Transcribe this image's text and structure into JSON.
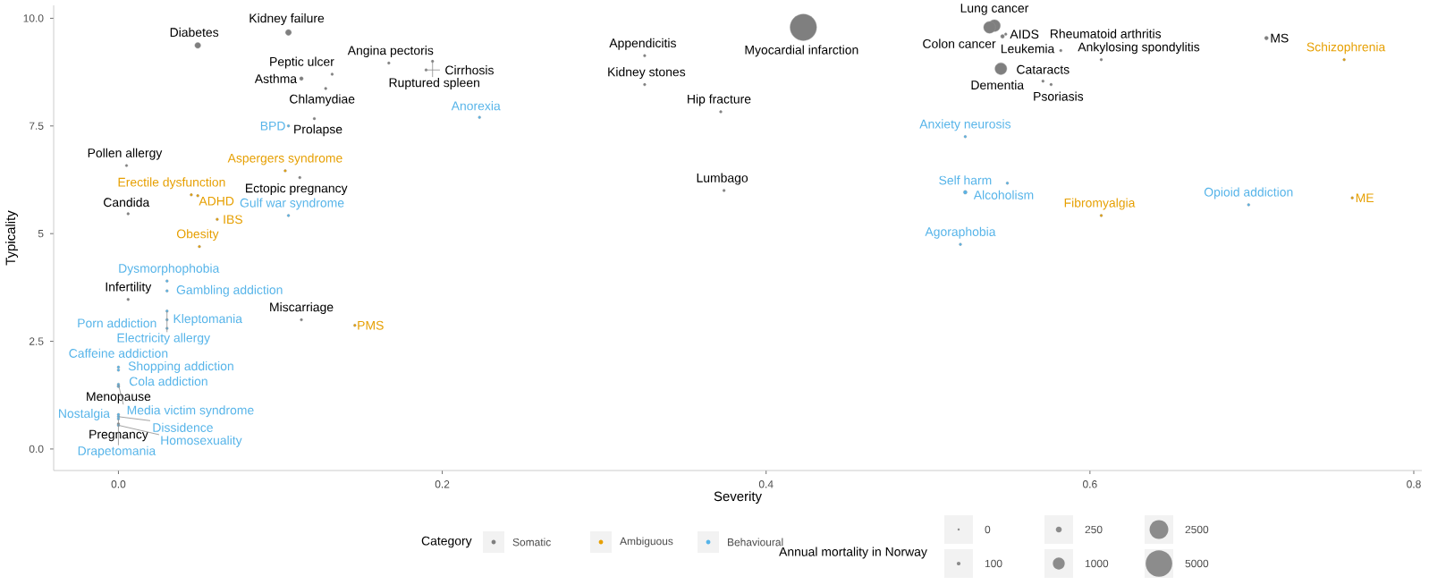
{
  "chart_data": {
    "type": "bubble",
    "xlabel": "Severity",
    "ylabel": "Typicality",
    "legend_title": "Category",
    "legend": "bottom",
    "grid": false,
    "xlim": [
      -0.04,
      0.805
    ],
    "ylim": [
      -0.5,
      10.3
    ],
    "xticks": [
      {
        "value": 0,
        "label": "0.0"
      },
      0.2,
      0.4,
      0.6,
      0.8
    ],
    "yticks": [
      {
        "value": 0,
        "label": "0.0"
      },
      2.5,
      5,
      7.5,
      {
        "value": 10,
        "label": "10.0"
      }
    ],
    "size_legend": [
      0,
      100,
      250,
      1000,
      2500,
      5000
    ],
    "series": [
      {
        "name": "Somatic",
        "color": "#7f7f7f",
        "x": [
          0.105,
          0.049,
          0.113,
          0.167,
          0.194,
          0.19,
          0.128,
          0.132,
          0.121,
          0.005,
          0.112,
          0.006,
          0.006,
          0.113,
          0.0,
          0.0,
          0.423,
          0.325,
          0.325,
          0.372,
          0.374,
          0.541,
          0.538,
          0.546,
          0.548,
          0.545,
          0.571,
          0.582,
          0.607,
          0.576,
          0.709
        ],
        "values": [
          9.67,
          9.37,
          8.6,
          8.96,
          9.0,
          8.8,
          8.37,
          8.7,
          7.67,
          6.58,
          6.3,
          5.46,
          3.47,
          3.0,
          1.46,
          0.58,
          9.79,
          9.13,
          8.46,
          7.83,
          6.0,
          9.83,
          9.79,
          9.58,
          9.63,
          8.83,
          8.54,
          9.25,
          9.04,
          8.46,
          9.54
        ],
        "sizes": [
          250,
          250,
          100,
          50,
          50,
          50,
          50,
          50,
          50,
          50,
          50,
          50,
          50,
          50,
          50,
          50,
          5000,
          50,
          50,
          50,
          50,
          1000,
          1000,
          100,
          50,
          1000,
          50,
          50,
          50,
          50,
          100
        ]
      },
      {
        "name": "Ambiguous",
        "color": "#e69f00",
        "x": [
          0.103,
          0.045,
          0.049,
          0.061,
          0.05,
          0.146,
          0.757,
          0.607,
          0.762
        ],
        "values": [
          6.46,
          5.9,
          5.88,
          5.33,
          4.7,
          2.87,
          9.04,
          5.42,
          5.83
        ],
        "sizes": [
          50,
          50,
          50,
          50,
          50,
          50,
          50,
          50,
          50
        ]
      },
      {
        "name": "Behavioural",
        "color": "#56b4e9",
        "x": [
          0.105,
          0.223,
          0.105,
          0.03,
          0.03,
          0.03,
          0.03,
          0.03,
          0.0,
          0.0,
          0.0,
          0.0,
          0.0,
          0.0,
          0.0,
          0.0,
          0.523,
          0.523,
          0.549,
          0.52,
          0.698
        ],
        "values": [
          7.5,
          7.7,
          5.42,
          3.9,
          3.67,
          3.2,
          3.0,
          2.8,
          1.83,
          1.9,
          1.45,
          1.5,
          0.8,
          0.75,
          0.7,
          0.55,
          7.25,
          5.96,
          6.17,
          4.75,
          5.67
        ],
        "sizes": [
          50,
          50,
          50,
          50,
          50,
          50,
          50,
          50,
          50,
          50,
          50,
          50,
          50,
          50,
          50,
          50,
          50,
          100,
          50,
          50,
          50
        ]
      }
    ],
    "annotations": [
      {
        "text": "Kidney failure",
        "x": 0.105,
        "y": 9.67
      },
      {
        "text": "Diabetes",
        "x": 0.049,
        "y": 9.37
      },
      {
        "text": "Asthma",
        "x": 0.113,
        "y": 8.6
      },
      {
        "text": "Angina pectoris",
        "x": 0.167,
        "y": 8.96
      },
      {
        "text": "Ruptured spleen",
        "x": 0.194,
        "y": 9.0
      },
      {
        "text": "Cirrhosis",
        "x": 0.19,
        "y": 8.8
      },
      {
        "text": "Chlamydiae",
        "x": 0.128,
        "y": 8.37
      },
      {
        "text": "Peptic ulcer",
        "x": 0.132,
        "y": 8.7
      },
      {
        "text": "Prolapse",
        "x": 0.121,
        "y": 7.67
      },
      {
        "text": "Pollen allergy",
        "x": 0.005,
        "y": 6.58
      },
      {
        "text": "Ectopic pregnancy",
        "x": 0.112,
        "y": 6.3
      },
      {
        "text": "Candida",
        "x": 0.006,
        "y": 5.46
      },
      {
        "text": "Infertility",
        "x": 0.006,
        "y": 3.47
      },
      {
        "text": "Miscarriage",
        "x": 0.113,
        "y": 3.0
      },
      {
        "text": "Menopause",
        "x": 0.0,
        "y": 1.46
      },
      {
        "text": "Pregnancy",
        "x": 0.0,
        "y": 0.58
      },
      {
        "text": "Myocardial infarction",
        "x": 0.423,
        "y": 9.79
      },
      {
        "text": "Appendicitis",
        "x": 0.325,
        "y": 9.13
      },
      {
        "text": "Kidney stones",
        "x": 0.325,
        "y": 8.46
      },
      {
        "text": "Hip fracture",
        "x": 0.372,
        "y": 7.83
      },
      {
        "text": "Lumbago",
        "x": 0.374,
        "y": 6.0
      },
      {
        "text": "Lung cancer",
        "x": 0.541,
        "y": 9.83
      },
      {
        "text": "Colon cancer",
        "x": 0.538,
        "y": 9.79
      },
      {
        "text": "Leukemia",
        "x": 0.546,
        "y": 9.58
      },
      {
        "text": "AIDS",
        "x": 0.548,
        "y": 9.63
      },
      {
        "text": "Dementia",
        "x": 0.545,
        "y": 8.83
      },
      {
        "text": "Cataracts",
        "x": 0.571,
        "y": 8.54
      },
      {
        "text": "Rheumatoid arthritis",
        "x": 0.582,
        "y": 9.25
      },
      {
        "text": "Ankylosing spondylitis",
        "x": 0.607,
        "y": 9.04
      },
      {
        "text": "Psoriasis",
        "x": 0.576,
        "y": 8.46
      },
      {
        "text": "MS",
        "x": 0.709,
        "y": 9.54
      },
      {
        "text": "Aspergers syndrome",
        "x": 0.103,
        "y": 6.46
      },
      {
        "text": "Erectile dysfunction",
        "x": 0.045,
        "y": 5.9
      },
      {
        "text": "ADHD",
        "x": 0.049,
        "y": 5.88
      },
      {
        "text": "IBS",
        "x": 0.061,
        "y": 5.33
      },
      {
        "text": "Obesity",
        "x": 0.05,
        "y": 4.7
      },
      {
        "text": "PMS",
        "x": 0.146,
        "y": 2.87
      },
      {
        "text": "Schizophrenia",
        "x": 0.757,
        "y": 9.04
      },
      {
        "text": "Fibromyalgia",
        "x": 0.607,
        "y": 5.42
      },
      {
        "text": "ME",
        "x": 0.762,
        "y": 5.83
      },
      {
        "text": "BPD",
        "x": 0.105,
        "y": 7.5
      },
      {
        "text": "Anorexia",
        "x": 0.223,
        "y": 7.7
      },
      {
        "text": "Gulf war syndrome",
        "x": 0.105,
        "y": 5.42
      },
      {
        "text": "Dysmorphophobia",
        "x": 0.03,
        "y": 3.9
      },
      {
        "text": "Gambling addiction",
        "x": 0.03,
        "y": 3.67
      },
      {
        "text": "Electricity allergy",
        "x": 0.03,
        "y": 3.2
      },
      {
        "text": "Kleptomania",
        "x": 0.03,
        "y": 3.0
      },
      {
        "text": "Porn addiction",
        "x": 0.03,
        "y": 2.8
      },
      {
        "text": "Caffeine addiction",
        "x": 0.0,
        "y": 1.83
      },
      {
        "text": "Shopping addiction",
        "x": 0.0,
        "y": 1.9
      },
      {
        "text": "Cola addiction",
        "x": 0.0,
        "y": 1.45
      },
      {
        "text": "Media victim syndrome",
        "x": 0.0,
        "y": 1.5
      },
      {
        "text": "Nostalgia",
        "x": 0.0,
        "y": 0.8
      },
      {
        "text": "Dissidence",
        "x": 0.0,
        "y": 0.75
      },
      {
        "text": "Drapetomania",
        "x": 0.0,
        "y": 0.7
      },
      {
        "text": "Homosexuality",
        "x": 0.0,
        "y": 0.55
      },
      {
        "text": "Anxiety neurosis",
        "x": 0.523,
        "y": 7.25
      },
      {
        "text": "Self harm",
        "x": 0.523,
        "y": 5.96
      },
      {
        "text": "Alcoholism",
        "x": 0.549,
        "y": 6.17
      },
      {
        "text": "Agoraphobia",
        "x": 0.52,
        "y": 4.75
      },
      {
        "text": "Opioid addiction",
        "x": 0.698,
        "y": 5.67
      },
      "Annual mortality in Norway"
    ]
  }
}
